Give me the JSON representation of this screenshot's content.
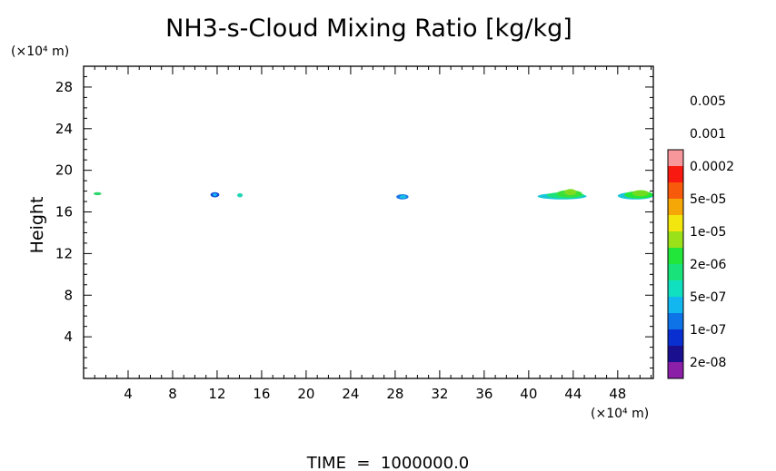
{
  "chart_data": {
    "type": "heatmap",
    "title": "NH3-s-Cloud Mixing Ratio [kg/kg]",
    "ylabel": "Height",
    "xlabel": "",
    "x_unit": "(×10⁴ m)",
    "y_unit": "(×10⁴ m)",
    "xlim": [
      0,
      51.2
    ],
    "ylim": [
      0,
      30
    ],
    "x_ticks": [
      4,
      8,
      12,
      16,
      20,
      24,
      28,
      32,
      36,
      40,
      44,
      48
    ],
    "y_ticks": [
      4,
      8,
      12,
      16,
      20,
      24,
      28
    ],
    "x_tick_labels": [
      "4",
      "8",
      "12",
      "16",
      "20",
      "24",
      "28",
      "32",
      "36",
      "40",
      "44",
      "48"
    ],
    "y_tick_labels": [
      "4",
      "8",
      "12",
      "16",
      "20",
      "24",
      "28"
    ],
    "grid": false,
    "colorbar": {
      "placement": "right",
      "colors": [
        "#8b1fa8",
        "#1a0f8f",
        "#0a2fd1",
        "#0f73e8",
        "#12b7f0",
        "#10e0c0",
        "#19e27a",
        "#22e63a",
        "#9be11a",
        "#f2e60e",
        "#f6a708",
        "#f85a0c",
        "#f81a10",
        "#f7969b"
      ],
      "labels": [
        "2e-08",
        "1e-07",
        "5e-07",
        "2e-06",
        "1e-05",
        "5e-05",
        "0.0002",
        "0.001",
        "0.005"
      ]
    },
    "features": [
      {
        "x": [
          0.9,
          1.6
        ],
        "y": [
          17.6,
          17.9
        ],
        "layers": [
          {
            "color": "#2bd66a",
            "x": [
              0.9,
              1.6
            ],
            "y": [
              17.6,
              17.9
            ]
          }
        ]
      },
      {
        "x": [
          11.4,
          12.2
        ],
        "y": [
          17.4,
          17.9
        ],
        "layers": [
          {
            "color": "#1346d8",
            "x": [
              11.4,
              12.2
            ],
            "y": [
              17.4,
              17.9
            ]
          },
          {
            "color": "#12b7f0",
            "x": [
              11.6,
              12.0
            ],
            "y": [
              17.5,
              17.8
            ]
          }
        ]
      },
      {
        "x": [
          13.8,
          14.3
        ],
        "y": [
          17.4,
          17.8
        ],
        "layers": [
          {
            "color": "#22d6b5",
            "x": [
              13.8,
              14.3
            ],
            "y": [
              17.4,
              17.8
            ]
          }
        ]
      },
      {
        "x": [
          28.1,
          29.2
        ],
        "y": [
          17.2,
          17.7
        ],
        "layers": [
          {
            "color": "#1a78e4",
            "x": [
              28.1,
              29.2
            ],
            "y": [
              17.2,
              17.7
            ]
          },
          {
            "color": "#12c4e6",
            "x": [
              28.4,
              29.0
            ],
            "y": [
              17.3,
              17.6
            ]
          }
        ]
      },
      {
        "x": [
          40.8,
          45.2
        ],
        "y": [
          17.2,
          18.2
        ],
        "layers": [
          {
            "color": "#19c7d8",
            "x": [
              40.8,
              45.2
            ],
            "y": [
              17.2,
              17.8
            ]
          },
          {
            "color": "#19e27a",
            "x": [
              41.6,
              45.0
            ],
            "y": [
              17.3,
              17.9
            ]
          },
          {
            "color": "#3ae03a",
            "x": [
              42.5,
              44.8
            ],
            "y": [
              17.4,
              18.1
            ]
          },
          {
            "color": "#7fdc1e",
            "x": [
              43.2,
              44.3
            ],
            "y": [
              17.6,
              18.2
            ]
          }
        ]
      },
      {
        "x": [
          48.0,
          51.2
        ],
        "y": [
          17.2,
          18.1
        ],
        "layers": [
          {
            "color": "#19c7d8",
            "x": [
              48.0,
              51.2
            ],
            "y": [
              17.2,
              17.9
            ]
          },
          {
            "color": "#22e63a",
            "x": [
              48.6,
              51.2
            ],
            "y": [
              17.3,
              18.0
            ]
          },
          {
            "color": "#6fdc20",
            "x": [
              49.3,
              50.8
            ],
            "y": [
              17.5,
              18.1
            ]
          }
        ]
      }
    ],
    "footer": "TIME  =  1000000.0"
  }
}
